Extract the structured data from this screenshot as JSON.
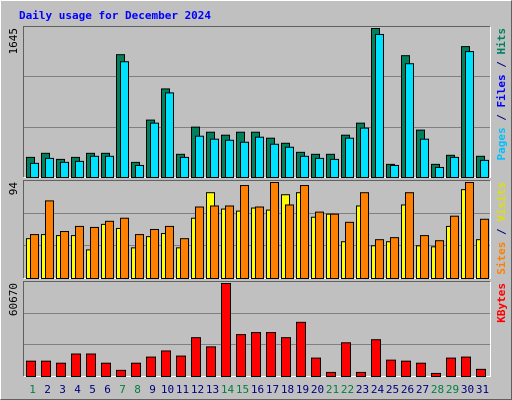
{
  "chart_data": {
    "type": "bar",
    "title": "Daily usage for December 2024",
    "title_color": "#0000ff",
    "categories": [
      "1",
      "2",
      "3",
      "4",
      "5",
      "6",
      "7",
      "8",
      "9",
      "10",
      "11",
      "12",
      "13",
      "14",
      "15",
      "16",
      "17",
      "18",
      "19",
      "20",
      "21",
      "22",
      "23",
      "24",
      "25",
      "26",
      "27",
      "28",
      "29",
      "30",
      "31"
    ],
    "category_colors": [
      "#008040",
      "#000080",
      "#000080",
      "#000080",
      "#000080",
      "#000080",
      "#008040",
      "#008040",
      "#000080",
      "#000080",
      "#000080",
      "#000080",
      "#000080",
      "#008040",
      "#008040",
      "#000080",
      "#000080",
      "#000080",
      "#000080",
      "#000080",
      "#008040",
      "#008040",
      "#000080",
      "#000080",
      "#000080",
      "#000080",
      "#000080",
      "#008040",
      "#008040",
      "#000080",
      "#000080"
    ],
    "panels": [
      {
        "ylim": [
          0,
          1645
        ],
        "grid_divisions": 3,
        "label_parts": [
          {
            "text": "Pages",
            "color": "#00c0ff"
          },
          {
            "text": " / ",
            "color": "#000080"
          },
          {
            "text": "Files",
            "color": "#0000ff"
          },
          {
            "text": " / ",
            "color": "#000080"
          },
          {
            "text": "Hits",
            "color": "#008060"
          }
        ],
        "series": [
          {
            "color": "#00805c",
            "values": [
              222,
              267,
              200,
              222,
              267,
              267,
              1356,
              167,
              634,
              978,
              256,
              556,
              500,
              467,
              500,
              500,
              434,
              378,
              278,
              256,
              256,
              467,
              600,
              1645,
              145,
              1345,
              523,
              145,
              245,
              1445,
              234
            ]
          },
          {
            "color": "#00e0ff",
            "values": [
              156,
              211,
              167,
              178,
              234,
              234,
              1278,
              133,
              600,
              934,
              222,
              456,
              423,
              411,
              389,
              445,
              367,
              334,
              234,
              211,
              200,
              434,
              545,
              1579,
              133,
              1256,
              423,
              111,
              222,
              1390,
              189
            ]
          }
        ]
      },
      {
        "ylim": [
          0,
          94
        ],
        "grid_divisions": 3,
        "label_parts": [
          {
            "text": "Sites",
            "color": "#ff8000"
          },
          {
            "text": " / ",
            "color": "#000080"
          },
          {
            "text": "Visits",
            "color": "#e0e000"
          }
        ],
        "series": [
          {
            "color": "#ffff00",
            "values": [
              39,
              43,
              42,
              42,
              28,
              53,
              49,
              30,
              41,
              44,
              30,
              59,
              84,
              68,
              66,
              69,
              67,
              82,
              84,
              60,
              63,
              36,
              71,
              32,
              36,
              72,
              32,
              31,
              51,
              87,
              38
            ]
          },
          {
            "color": "#ff8000",
            "values": [
              43,
              76,
              46,
              51,
              50,
              56,
              59,
              43,
              48,
              51,
              39,
              70,
              71,
              71,
              91,
              70,
              94,
              72,
              91,
              65,
              63,
              55,
              84,
              38,
              40,
              84,
              42,
              37,
              61,
              94,
              58
            ]
          }
        ]
      },
      {
        "ylim": [
          0,
          60670
        ],
        "grid_divisions": 3,
        "label_parts": [
          {
            "text": "KBytes",
            "color": "#ff0000"
          }
        ],
        "series": [
          {
            "color": "#ff0000",
            "values": [
              10000,
              10000,
              8667,
              14667,
              14667,
              8667,
              4000,
              8667,
              12667,
              16667,
              13333,
              25333,
              19333,
              60670,
              27333,
              28667,
              28667,
              25333,
              35333,
              12000,
              2667,
              22000,
              2667,
              24000,
              10667,
              10000,
              8667,
              2000,
              12000,
              12667,
              4667
            ]
          }
        ]
      }
    ]
  }
}
